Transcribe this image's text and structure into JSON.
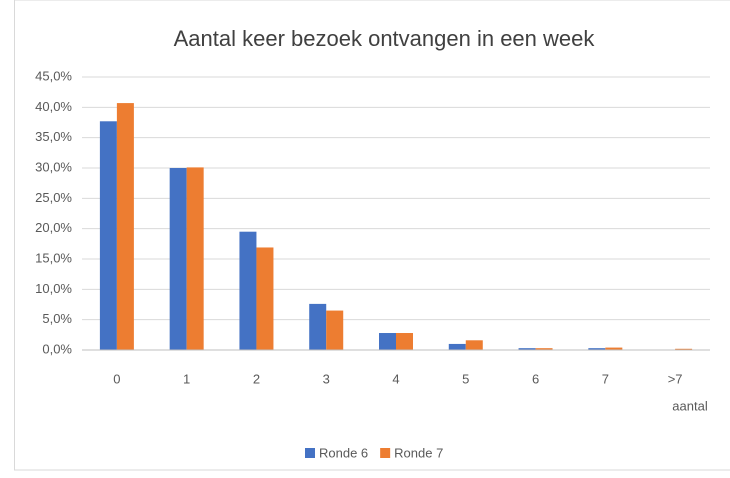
{
  "chart_data": {
    "type": "bar",
    "title": "Aantal keer bezoek ontvangen in een week",
    "x_label": "aantal",
    "categories": [
      "0",
      "1",
      "2",
      "3",
      "4",
      "5",
      "6",
      "7",
      ">7"
    ],
    "series": [
      {
        "name": "Ronde 6",
        "color": "#4472c4",
        "values": [
          37.7,
          30.0,
          19.5,
          7.6,
          2.8,
          1.0,
          0.3,
          0.3,
          0
        ]
      },
      {
        "name": "Ronde 7",
        "color": "#ed7d31",
        "values": [
          40.7,
          30.1,
          16.9,
          6.5,
          2.8,
          1.6,
          0.3,
          0.4,
          0.2
        ]
      }
    ],
    "ylim": [
      0,
      45
    ],
    "yticks": [
      {
        "value": 0,
        "label": "0,0%"
      },
      {
        "value": 5,
        "label": "5,0%"
      },
      {
        "value": 10,
        "label": "10,0%"
      },
      {
        "value": 15,
        "label": "15,0%"
      },
      {
        "value": 20,
        "label": "20,0%"
      },
      {
        "value": 25,
        "label": "25,0%"
      },
      {
        "value": 30,
        "label": "30,0%"
      },
      {
        "value": 35,
        "label": "35,0%"
      },
      {
        "value": 40,
        "label": "40,0%"
      },
      {
        "value": 45,
        "label": "45,0%"
      }
    ],
    "grid": true,
    "legend": "bottom"
  }
}
